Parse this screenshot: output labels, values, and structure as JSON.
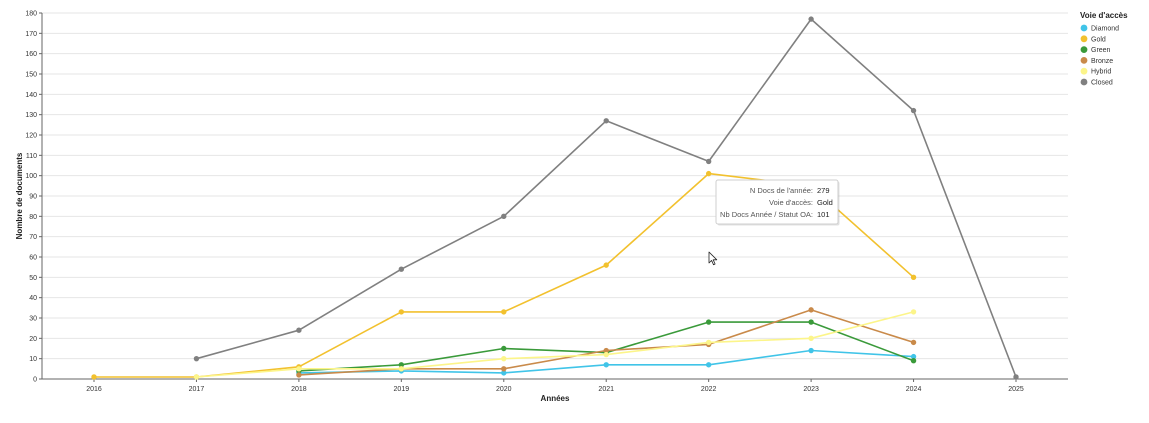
{
  "chart_data": {
    "type": "line",
    "xlabel": "Années",
    "ylabel": "Nombre de documents",
    "x": [
      2016,
      2017,
      2018,
      2019,
      2020,
      2021,
      2022,
      2023,
      2024,
      2025
    ],
    "xlim": [
      2016,
      2025
    ],
    "ylim": [
      0,
      180
    ],
    "yticks": [
      0,
      10,
      20,
      30,
      40,
      50,
      60,
      70,
      80,
      90,
      100,
      110,
      120,
      130,
      140,
      150,
      160,
      170,
      180
    ],
    "grid": true,
    "legend": {
      "title": "Voie d'accès",
      "placement": "top-right"
    },
    "series": [
      {
        "name": "Diamond",
        "color": "#40c4e8",
        "points": [
          [
            2018,
            3
          ],
          [
            2019,
            4
          ],
          [
            2020,
            3
          ],
          [
            2021,
            7
          ],
          [
            2022,
            7
          ],
          [
            2023,
            14
          ],
          [
            2024,
            11
          ]
        ]
      },
      {
        "name": "Gold",
        "color": "#f2c12e",
        "points": [
          [
            2016,
            1
          ],
          [
            2017,
            1
          ],
          [
            2018,
            6
          ],
          [
            2019,
            33
          ],
          [
            2020,
            33
          ],
          [
            2021,
            56
          ],
          [
            2022,
            101
          ],
          [
            2023,
            95
          ],
          [
            2024,
            50
          ]
        ]
      },
      {
        "name": "Green",
        "color": "#3a9a3a",
        "points": [
          [
            2018,
            4
          ],
          [
            2019,
            7
          ],
          [
            2020,
            15
          ],
          [
            2021,
            13
          ],
          [
            2022,
            28
          ],
          [
            2023,
            28
          ],
          [
            2024,
            9
          ]
        ]
      },
      {
        "name": "Bronze",
        "color": "#c98a4a",
        "points": [
          [
            2018,
            2
          ],
          [
            2019,
            5
          ],
          [
            2020,
            5
          ],
          [
            2021,
            14
          ],
          [
            2022,
            17
          ],
          [
            2023,
            34
          ],
          [
            2024,
            18
          ]
        ]
      },
      {
        "name": "Hybrid",
        "color": "#fcf58a",
        "points": [
          [
            2017,
            1
          ],
          [
            2018,
            5
          ],
          [
            2019,
            5
          ],
          [
            2020,
            10
          ],
          [
            2021,
            12
          ],
          [
            2022,
            18
          ],
          [
            2023,
            20
          ],
          [
            2024,
            33
          ]
        ]
      },
      {
        "name": "Closed",
        "color": "#808080",
        "points": [
          [
            2017,
            10
          ],
          [
            2018,
            24
          ],
          [
            2019,
            54
          ],
          [
            2020,
            80
          ],
          [
            2021,
            127
          ],
          [
            2022,
            107
          ],
          [
            2023,
            177
          ],
          [
            2024,
            132
          ],
          [
            2025,
            1
          ]
        ]
      }
    ],
    "tooltip": {
      "rows": [
        {
          "key": "N Docs de l'année:",
          "value": "279"
        },
        {
          "key": "Voie d'accès:",
          "value": "Gold"
        },
        {
          "key": "Nb Docs Année / Statut OA:",
          "value": "101"
        }
      ]
    }
  }
}
